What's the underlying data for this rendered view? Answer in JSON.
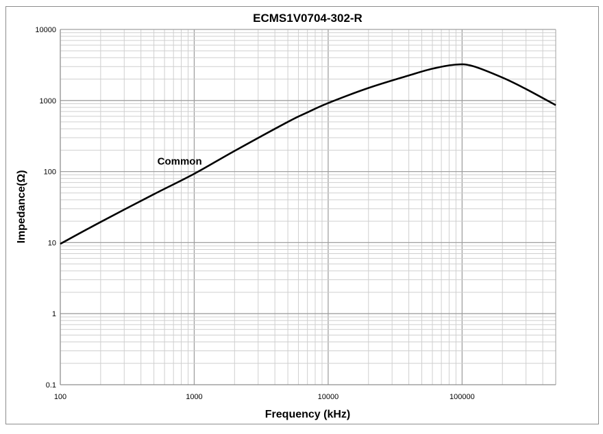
{
  "chart_data": {
    "type": "line",
    "title": "ECMS1V0704-302-R",
    "xlabel": "Frequency (kHz)",
    "ylabel": "Impedance(Ω)",
    "xscale": "log",
    "yscale": "log",
    "xlim": [
      100,
      500000
    ],
    "ylim": [
      0.1,
      10000
    ],
    "grid": true,
    "x_ticks": [
      "100",
      "1000",
      "10000",
      "100000"
    ],
    "y_ticks": [
      "0.1",
      "1",
      "10",
      "100",
      "1000",
      "10000"
    ],
    "series": [
      {
        "name": "Common",
        "color": "#000000",
        "x": [
          100,
          200,
          500,
          1000,
          2000,
          5000,
          7000,
          10000,
          20000,
          40000,
          60000,
          90000,
          120000,
          200000,
          300000,
          500000
        ],
        "y": [
          9.6,
          19.5,
          48,
          93,
          195,
          500,
          680,
          920,
          1500,
          2250,
          2800,
          3200,
          3050,
          2100,
          1450,
          860
        ]
      }
    ],
    "annotations": [
      {
        "text": "Common",
        "x": 500,
        "y": 140
      }
    ]
  }
}
